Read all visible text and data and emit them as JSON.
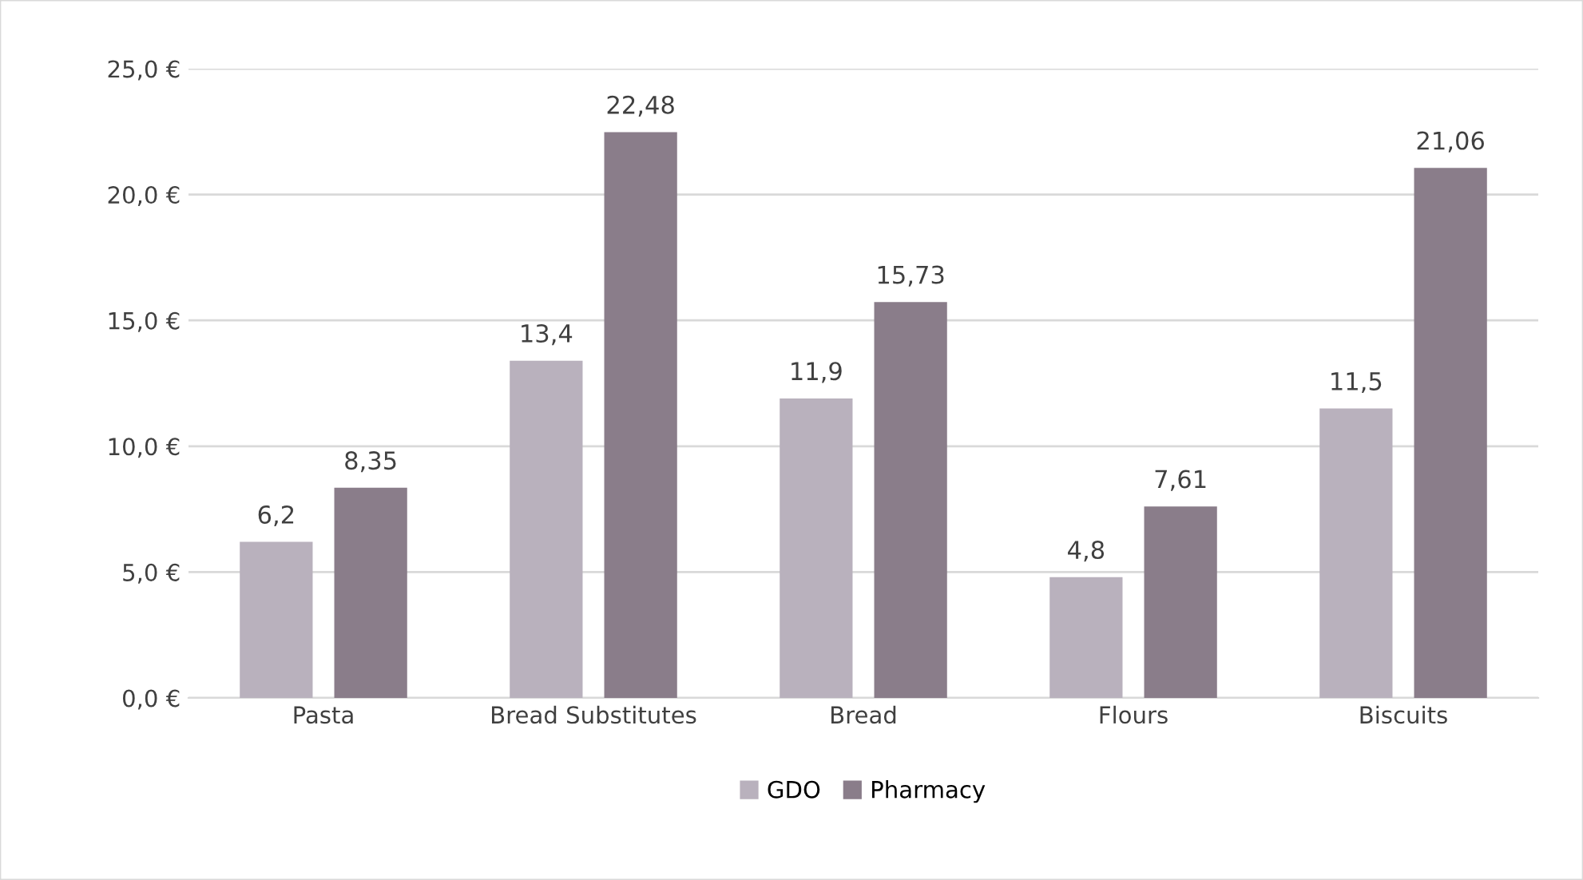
{
  "chart_data": {
    "type": "bar",
    "categories": [
      "Pasta",
      "Bread Substitutes",
      "Bread",
      "Flours",
      "Biscuits"
    ],
    "series": [
      {
        "name": "GDO",
        "color": "#b9b1bd",
        "values": [
          6.2,
          13.4,
          11.9,
          4.8,
          11.5
        ],
        "value_labels": [
          "6,2",
          "13,4",
          "11,9",
          "4,8",
          "11,5"
        ]
      },
      {
        "name": "Pharmacy",
        "color": "#8a7d8a",
        "values": [
          8.35,
          22.48,
          15.73,
          7.61,
          21.06
        ],
        "value_labels": [
          "8,35",
          "22,48",
          "15,73",
          "7,61",
          "21,06"
        ]
      }
    ],
    "ylim": [
      0,
      25
    ],
    "yticks": [
      {
        "value": 0,
        "label": "0,0 €"
      },
      {
        "value": 5,
        "label": "5,0 €"
      },
      {
        "value": 10,
        "label": "10,0 €"
      },
      {
        "value": 15,
        "label": "15,0 €"
      },
      {
        "value": 20,
        "label": "20,0 €"
      },
      {
        "value": 25,
        "label": "25,0 €"
      }
    ],
    "grid": "y",
    "legend": "bottom"
  }
}
